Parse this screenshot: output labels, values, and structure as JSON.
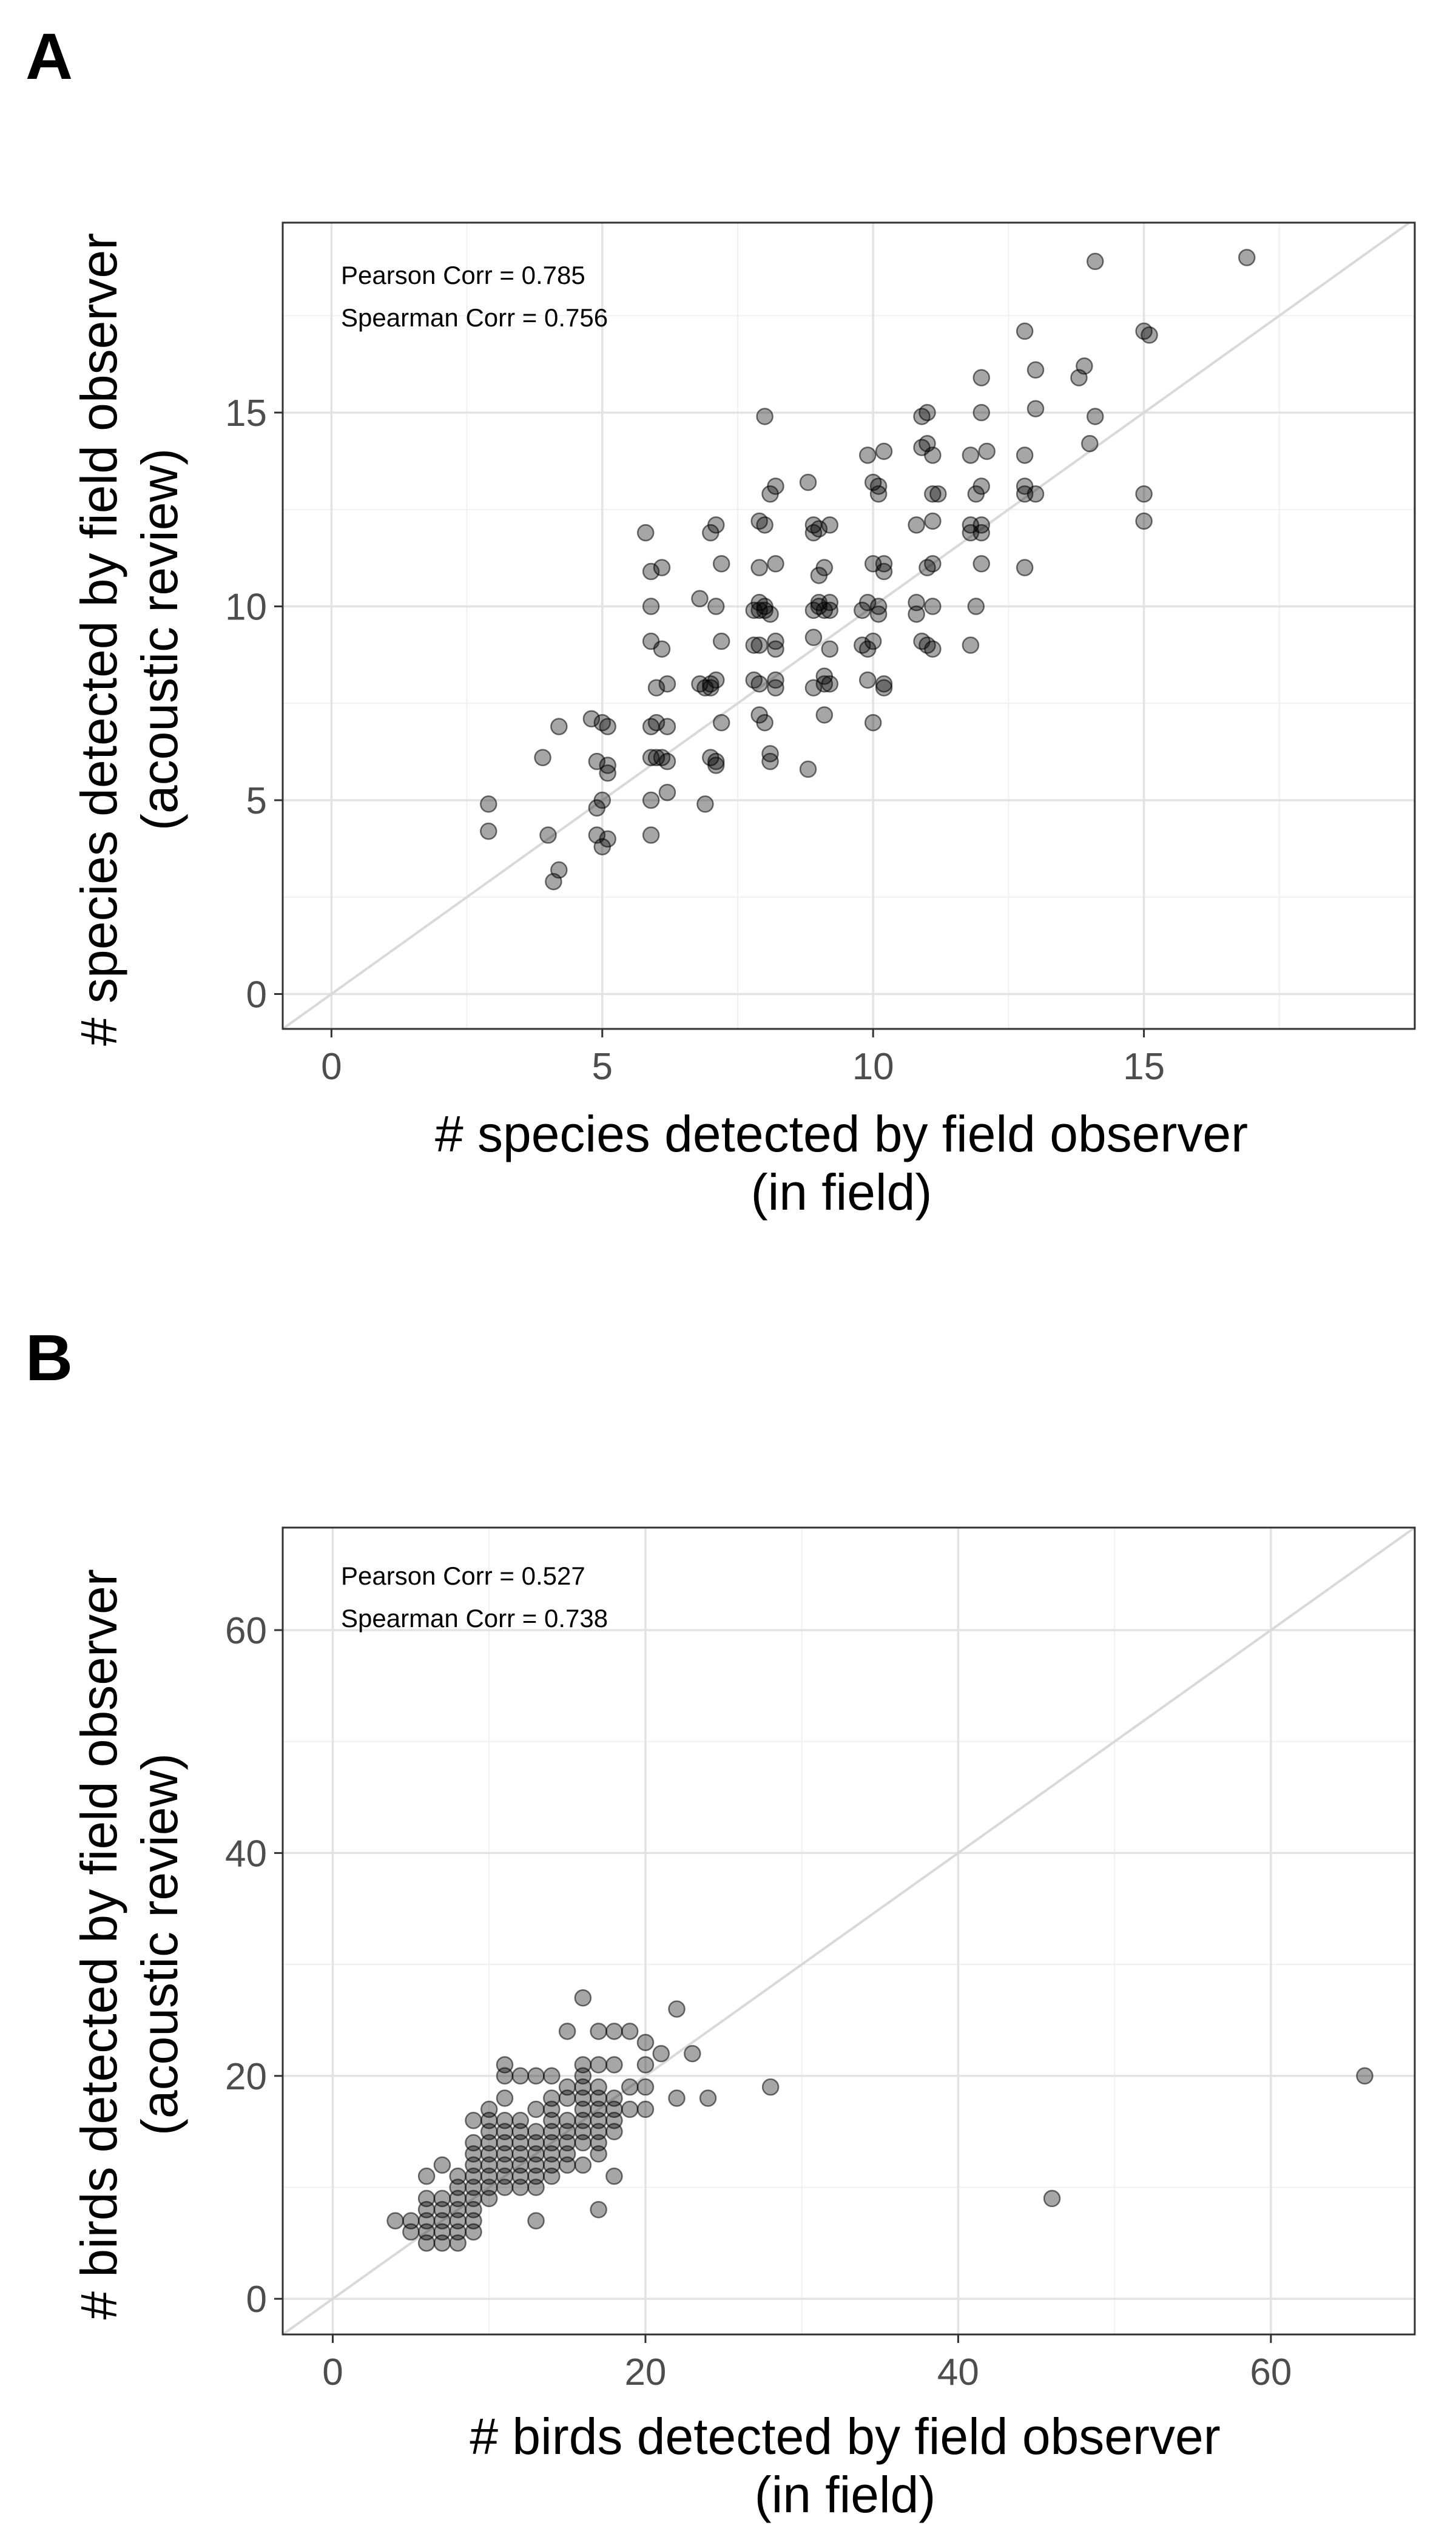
{
  "chart_data": [
    {
      "panel_label": "A",
      "type": "scatter",
      "title": "",
      "xlabel": [
        "# species detected by field observer",
        "(in field)"
      ],
      "ylabel": [
        "# species detected by field observer",
        "(acoustic review)"
      ],
      "xlim": [
        -0.9,
        20
      ],
      "ylim": [
        -0.9,
        19.9
      ],
      "xticks": [
        0,
        5,
        10,
        15
      ],
      "yticks": [
        0,
        5,
        10,
        15
      ],
      "grid": true,
      "identity_line": true,
      "annotations": [
        "Pearson Corr = 0.785",
        "Spearman Corr = 0.756"
      ],
      "point_color": "#000000",
      "point_alpha": 0.35,
      "line_color": "#d9d9d9",
      "points": [
        [
          2.9,
          4.9
        ],
        [
          2.9,
          4.2
        ],
        [
          3.9,
          6.1
        ],
        [
          4.0,
          4.1
        ],
        [
          4.1,
          2.9
        ],
        [
          4.2,
          3.2
        ],
        [
          4.2,
          6.9
        ],
        [
          4.8,
          7.1
        ],
        [
          4.9,
          6.0
        ],
        [
          4.9,
          4.8
        ],
        [
          4.9,
          4.1
        ],
        [
          5.0,
          7.0
        ],
        [
          5.0,
          5.0
        ],
        [
          5.0,
          3.8
        ],
        [
          5.1,
          6.9
        ],
        [
          5.1,
          5.9
        ],
        [
          5.1,
          5.7
        ],
        [
          5.1,
          4.0
        ],
        [
          5.8,
          11.9
        ],
        [
          5.9,
          10.9
        ],
        [
          5.9,
          10.0
        ],
        [
          5.9,
          9.1
        ],
        [
          5.9,
          6.9
        ],
        [
          5.9,
          6.1
        ],
        [
          5.9,
          5.0
        ],
        [
          5.9,
          4.1
        ],
        [
          6.0,
          7.9
        ],
        [
          6.0,
          7.0
        ],
        [
          6.0,
          6.1
        ],
        [
          6.1,
          11.0
        ],
        [
          6.1,
          8.9
        ],
        [
          6.1,
          6.1
        ],
        [
          6.2,
          8.0
        ],
        [
          6.2,
          6.9
        ],
        [
          6.2,
          6.0
        ],
        [
          6.2,
          5.2
        ],
        [
          6.8,
          10.2
        ],
        [
          6.8,
          8.0
        ],
        [
          6.9,
          7.9
        ],
        [
          6.9,
          4.9
        ],
        [
          7.0,
          8.0
        ],
        [
          7.0,
          7.9
        ],
        [
          7.0,
          6.1
        ],
        [
          7.0,
          11.9
        ],
        [
          7.1,
          12.1
        ],
        [
          7.1,
          10.0
        ],
        [
          7.1,
          8.1
        ],
        [
          7.1,
          6.0
        ],
        [
          7.1,
          5.9
        ],
        [
          7.2,
          11.1
        ],
        [
          7.2,
          9.1
        ],
        [
          7.2,
          7.0
        ],
        [
          7.8,
          9.9
        ],
        [
          7.8,
          9.0
        ],
        [
          7.8,
          8.1
        ],
        [
          7.9,
          12.2
        ],
        [
          7.9,
          11.0
        ],
        [
          7.9,
          10.1
        ],
        [
          7.9,
          9.9
        ],
        [
          7.9,
          9.0
        ],
        [
          7.9,
          8.0
        ],
        [
          7.9,
          7.2
        ],
        [
          8.0,
          14.9
        ],
        [
          8.0,
          12.1
        ],
        [
          8.0,
          10.0
        ],
        [
          8.0,
          9.9
        ],
        [
          8.0,
          7.0
        ],
        [
          8.1,
          12.9
        ],
        [
          8.1,
          9.8
        ],
        [
          8.1,
          6.2
        ],
        [
          8.1,
          6.0
        ],
        [
          8.2,
          13.1
        ],
        [
          8.2,
          11.1
        ],
        [
          8.2,
          9.1
        ],
        [
          8.2,
          8.9
        ],
        [
          8.2,
          8.1
        ],
        [
          8.2,
          7.9
        ],
        [
          8.8,
          13.2
        ],
        [
          8.8,
          5.8
        ],
        [
          8.9,
          12.1
        ],
        [
          8.9,
          11.9
        ],
        [
          8.9,
          9.9
        ],
        [
          8.9,
          9.2
        ],
        [
          8.9,
          7.9
        ],
        [
          9.0,
          12.0
        ],
        [
          9.0,
          10.1
        ],
        [
          9.0,
          10.0
        ],
        [
          9.0,
          10.8
        ],
        [
          9.1,
          11.0
        ],
        [
          9.1,
          9.9
        ],
        [
          9.1,
          8.2
        ],
        [
          9.1,
          8.0
        ],
        [
          9.1,
          7.2
        ],
        [
          9.2,
          12.1
        ],
        [
          9.2,
          8.9
        ],
        [
          9.2,
          9.9
        ],
        [
          9.2,
          8.0
        ],
        [
          9.2,
          10.1
        ],
        [
          9.8,
          9.9
        ],
        [
          9.8,
          9.0
        ],
        [
          9.9,
          13.9
        ],
        [
          9.9,
          10.1
        ],
        [
          9.9,
          8.9
        ],
        [
          9.9,
          8.1
        ],
        [
          10.0,
          13.2
        ],
        [
          10.0,
          11.1
        ],
        [
          10.0,
          9.1
        ],
        [
          10.0,
          7.0
        ],
        [
          10.1,
          13.1
        ],
        [
          10.1,
          12.9
        ],
        [
          10.1,
          10.0
        ],
        [
          10.1,
          9.8
        ],
        [
          10.2,
          14.0
        ],
        [
          10.2,
          11.1
        ],
        [
          10.2,
          10.9
        ],
        [
          10.2,
          7.9
        ],
        [
          10.2,
          8.0
        ],
        [
          10.8,
          12.1
        ],
        [
          10.8,
          10.1
        ],
        [
          10.8,
          9.8
        ],
        [
          10.9,
          14.9
        ],
        [
          10.9,
          14.1
        ],
        [
          10.9,
          9.1
        ],
        [
          11.0,
          15.0
        ],
        [
          11.0,
          14.2
        ],
        [
          11.0,
          11.0
        ],
        [
          11.0,
          9.0
        ],
        [
          11.1,
          13.9
        ],
        [
          11.1,
          12.9
        ],
        [
          11.1,
          12.2
        ],
        [
          11.1,
          11.1
        ],
        [
          11.1,
          10.0
        ],
        [
          11.1,
          8.9
        ],
        [
          11.2,
          12.9
        ],
        [
          11.8,
          13.9
        ],
        [
          11.8,
          12.1
        ],
        [
          11.8,
          11.9
        ],
        [
          11.8,
          9.0
        ],
        [
          11.9,
          12.9
        ],
        [
          11.9,
          10.0
        ],
        [
          12.0,
          15.9
        ],
        [
          12.0,
          15.0
        ],
        [
          12.0,
          13.1
        ],
        [
          12.0,
          12.1
        ],
        [
          12.0,
          11.9
        ],
        [
          12.0,
          11.1
        ],
        [
          12.1,
          14.0
        ],
        [
          12.8,
          17.1
        ],
        [
          12.8,
          13.9
        ],
        [
          12.8,
          13.1
        ],
        [
          12.8,
          12.9
        ],
        [
          12.8,
          11.0
        ],
        [
          13.0,
          16.1
        ],
        [
          13.0,
          15.1
        ],
        [
          13.0,
          12.9
        ],
        [
          13.8,
          15.9
        ],
        [
          13.9,
          16.2
        ],
        [
          14.0,
          14.2
        ],
        [
          14.1,
          14.9
        ],
        [
          14.1,
          18.9
        ],
        [
          15.0,
          17.1
        ],
        [
          15.0,
          12.2
        ],
        [
          15.0,
          12.9
        ],
        [
          15.1,
          17.0
        ],
        [
          16.9,
          19.0
        ]
      ]
    },
    {
      "panel_label": "B",
      "type": "scatter",
      "title": "",
      "xlabel": [
        "# birds detected by field observer",
        "(in field)"
      ],
      "ylabel": [
        "# birds detected by field observer",
        "(acoustic review)"
      ],
      "xlim": [
        -3.2,
        69.2
      ],
      "ylim": [
        -3.2,
        69.2
      ],
      "xticks": [
        0,
        20,
        40,
        60
      ],
      "yticks": [
        0,
        20,
        40,
        60
      ],
      "grid": true,
      "identity_line": true,
      "annotations": [
        "Pearson Corr = 0.527",
        "Spearman Corr = 0.738"
      ],
      "point_color": "#000000",
      "point_alpha": 0.35,
      "line_color": "#d9d9d9",
      "points": [
        [
          4,
          7
        ],
        [
          5,
          6
        ],
        [
          5,
          7
        ],
        [
          6,
          5
        ],
        [
          6,
          6
        ],
        [
          6,
          7
        ],
        [
          6,
          8
        ],
        [
          6,
          9
        ],
        [
          6,
          11
        ],
        [
          7,
          5
        ],
        [
          7,
          6
        ],
        [
          7,
          7
        ],
        [
          7,
          8
        ],
        [
          7,
          9
        ],
        [
          7,
          12
        ],
        [
          8,
          5
        ],
        [
          8,
          6
        ],
        [
          8,
          7
        ],
        [
          8,
          8
        ],
        [
          8,
          9
        ],
        [
          8,
          10
        ],
        [
          8,
          11
        ],
        [
          9,
          6
        ],
        [
          9,
          7
        ],
        [
          9,
          8
        ],
        [
          9,
          9
        ],
        [
          9,
          10
        ],
        [
          9,
          11
        ],
        [
          9,
          12
        ],
        [
          9,
          13
        ],
        [
          9,
          14
        ],
        [
          9,
          16
        ],
        [
          10,
          9
        ],
        [
          10,
          10
        ],
        [
          10,
          11
        ],
        [
          10,
          12
        ],
        [
          10,
          13
        ],
        [
          10,
          14
        ],
        [
          10,
          15
        ],
        [
          10,
          16
        ],
        [
          10,
          17
        ],
        [
          11,
          10
        ],
        [
          11,
          11
        ],
        [
          11,
          12
        ],
        [
          11,
          13
        ],
        [
          11,
          14
        ],
        [
          11,
          15
        ],
        [
          11,
          16
        ],
        [
          11,
          18
        ],
        [
          11,
          20
        ],
        [
          11,
          21
        ],
        [
          12,
          10
        ],
        [
          12,
          11
        ],
        [
          12,
          12
        ],
        [
          12,
          13
        ],
        [
          12,
          14
        ],
        [
          12,
          15
        ],
        [
          12,
          16
        ],
        [
          12,
          20
        ],
        [
          13,
          7
        ],
        [
          13,
          10
        ],
        [
          13,
          11
        ],
        [
          13,
          12
        ],
        [
          13,
          13
        ],
        [
          13,
          14
        ],
        [
          13,
          15
        ],
        [
          13,
          17
        ],
        [
          13,
          20
        ],
        [
          14,
          11
        ],
        [
          14,
          12
        ],
        [
          14,
          13
        ],
        [
          14,
          14
        ],
        [
          14,
          15
        ],
        [
          14,
          16
        ],
        [
          14,
          17
        ],
        [
          14,
          18
        ],
        [
          14,
          20
        ],
        [
          15,
          12
        ],
        [
          15,
          13
        ],
        [
          15,
          14
        ],
        [
          15,
          15
        ],
        [
          15,
          16
        ],
        [
          15,
          18
        ],
        [
          15,
          19
        ],
        [
          15,
          24
        ],
        [
          16,
          12
        ],
        [
          16,
          14
        ],
        [
          16,
          15
        ],
        [
          16,
          16
        ],
        [
          16,
          17
        ],
        [
          16,
          18
        ],
        [
          16,
          19
        ],
        [
          16,
          20
        ],
        [
          16,
          21
        ],
        [
          16,
          27
        ],
        [
          17,
          8
        ],
        [
          17,
          13
        ],
        [
          17,
          14
        ],
        [
          17,
          15
        ],
        [
          17,
          16
        ],
        [
          17,
          17
        ],
        [
          17,
          18
        ],
        [
          17,
          19
        ],
        [
          17,
          21
        ],
        [
          17,
          24
        ],
        [
          18,
          11
        ],
        [
          18,
          15
        ],
        [
          18,
          16
        ],
        [
          18,
          17
        ],
        [
          18,
          18
        ],
        [
          18,
          21
        ],
        [
          18,
          24
        ],
        [
          19,
          17
        ],
        [
          19,
          19
        ],
        [
          19,
          24
        ],
        [
          20,
          17
        ],
        [
          20,
          19
        ],
        [
          20,
          21
        ],
        [
          20,
          23
        ],
        [
          21,
          22
        ],
        [
          22,
          18
        ],
        [
          22,
          26
        ],
        [
          23,
          22
        ],
        [
          24,
          18
        ],
        [
          28,
          19
        ],
        [
          46,
          9
        ],
        [
          66,
          20
        ]
      ]
    }
  ]
}
